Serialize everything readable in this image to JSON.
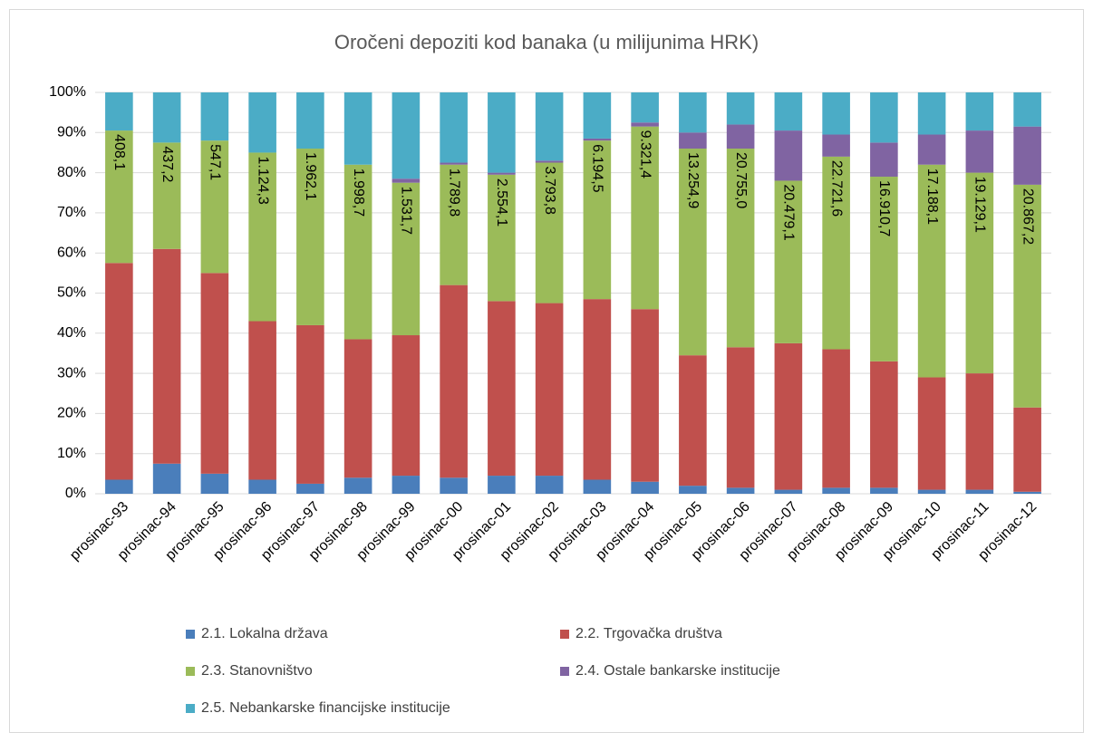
{
  "chart_data": {
    "type": "stacked_percent_bar",
    "title": "Oročeni depoziti kod banaka (u milijunima HRK)",
    "categories": [
      "prosinac-93",
      "prosinac-94",
      "prosinac-95",
      "prosinac-96",
      "prosinac-97",
      "prosinac-98",
      "prosinac-99",
      "prosinac-00",
      "prosinac-01",
      "prosinac-02",
      "prosinac-03",
      "prosinac-04",
      "prosinac-05",
      "prosinac-06",
      "prosinac-07",
      "prosinac-08",
      "prosinac-09",
      "prosinac-10",
      "prosinac-11",
      "prosinac-12"
    ],
    "series": [
      {
        "name": "2.1. Lokalna država",
        "color": "#4a7ebb",
        "values": [
          3.5,
          7.5,
          5,
          3.5,
          2.5,
          4,
          4.5,
          4,
          4.5,
          4.5,
          3.5,
          3,
          2,
          1.5,
          1,
          1.5,
          1.5,
          1,
          1,
          0.5
        ]
      },
      {
        "name": "2.2. Trgovačka društva",
        "color": "#c0504d",
        "values": [
          54,
          53.5,
          50,
          39.5,
          39.5,
          34.5,
          35,
          48,
          43.5,
          43,
          45,
          43,
          32.5,
          35,
          36.5,
          34.5,
          31.5,
          28,
          29,
          21
        ]
      },
      {
        "name": "2.3. Stanovništvo",
        "color": "#9bbb59",
        "values": [
          33,
          26.5,
          33,
          42,
          44,
          43.5,
          38,
          30,
          31.5,
          35,
          39.5,
          45.5,
          51.5,
          49.5,
          40.5,
          48,
          46,
          53,
          50,
          55.5
        ],
        "labels": [
          "408,1",
          "437,2",
          "547,1",
          "1.124,3",
          "1.962,1",
          "1.998,7",
          "1.531,7",
          "1.789,8",
          "2.554,1",
          "3.793,8",
          "6.194,5",
          "9.321,4",
          "13.254,9",
          "20.755,0",
          "20.479,1",
          "22.721,6",
          "16.910,7",
          "17.188,1",
          "19.129,1",
          "20.867,2"
        ]
      },
      {
        "name": "2.4. Ostale bankarske institucije",
        "color": "#8064a2",
        "values": [
          0,
          0,
          0,
          0,
          0,
          0,
          1,
          0.5,
          0.5,
          0.5,
          0.5,
          1,
          4,
          6,
          12.5,
          5.5,
          8.5,
          7.5,
          10.5,
          14.5
        ]
      },
      {
        "name": "2.5. Nebankarske financijske institucije",
        "color": "#4bacc6",
        "values": [
          9.5,
          12.5,
          12,
          15,
          14,
          18,
          21.5,
          17.5,
          20,
          17,
          11.5,
          7.5,
          10,
          8,
          9.5,
          10.5,
          12.5,
          10.5,
          9.5,
          8.5
        ]
      }
    ],
    "ylim": [
      0,
      100
    ],
    "yticks": [
      {
        "value": 0,
        "label": "0%"
      },
      {
        "value": 10,
        "label": "10%"
      },
      {
        "value": 20,
        "label": "20%"
      },
      {
        "value": 30,
        "label": "30%"
      },
      {
        "value": 40,
        "label": "40%"
      },
      {
        "value": 50,
        "label": "50%"
      },
      {
        "value": 60,
        "label": "60%"
      },
      {
        "value": 70,
        "label": "70%"
      },
      {
        "value": 80,
        "label": "80%"
      },
      {
        "value": 90,
        "label": "90%"
      },
      {
        "value": 100,
        "label": "100%"
      }
    ],
    "grid": true,
    "legend": "bottom"
  }
}
